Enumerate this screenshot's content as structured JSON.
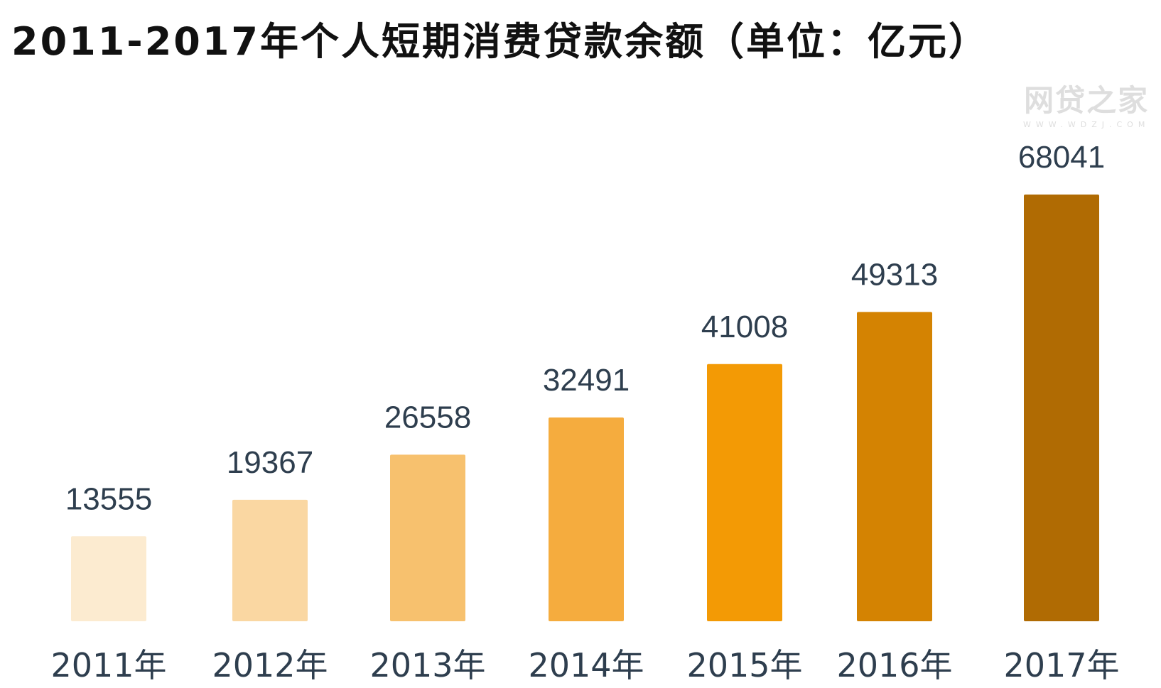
{
  "chart_data": {
    "type": "bar",
    "title": "2011-2017年个人短期消费贷款余额（单位：亿元）",
    "categories": [
      "2011年",
      "2012年",
      "2013年",
      "2014年",
      "2015年",
      "2016年",
      "2017年"
    ],
    "values": [
      13555,
      19367,
      26558,
      32491,
      41008,
      49313,
      68041
    ],
    "data_labels": [
      "13555",
      "19367",
      "26558",
      "32491",
      "41008",
      "49313",
      "68041"
    ],
    "colors": [
      "#FCEBD0",
      "#FAD7A2",
      "#F7C16E",
      "#F5AC3E",
      "#F39A05",
      "#D48302",
      "#B06B03"
    ],
    "ylim": [
      0,
      68041
    ],
    "grid": false,
    "legend": "none",
    "xlabel": "",
    "ylabel": ""
  },
  "watermark": {
    "logo": "网贷之家",
    "url": "WWW.WDZJ.COM"
  }
}
